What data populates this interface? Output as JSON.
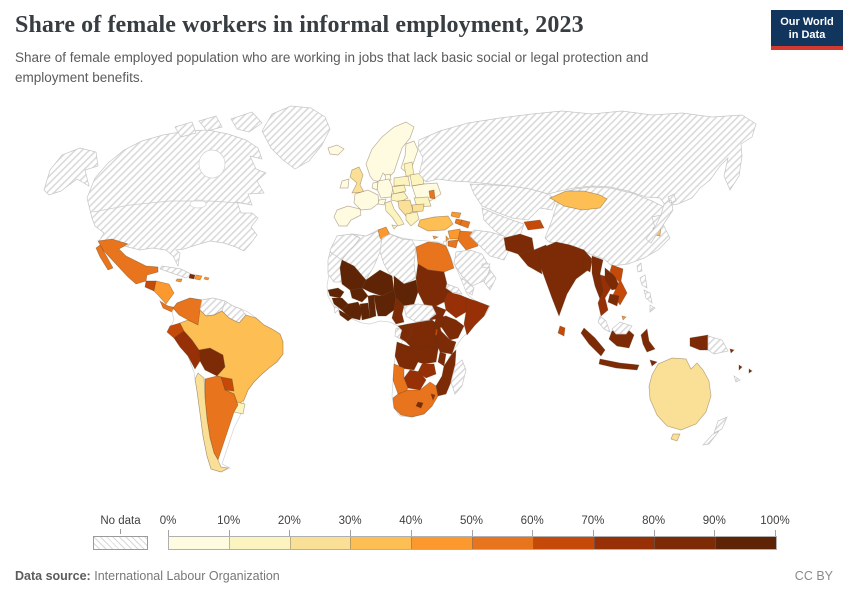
{
  "header": {
    "title": "Share of female workers in informal employment, 2023",
    "subtitle": "Share of female employed population who are working in jobs that lack basic social or legal protection and employment benefits."
  },
  "logo": {
    "line1": "Our World",
    "line2": "in Data"
  },
  "colors": {
    "logo_bg": "#12355e",
    "logo_red": "#d3392e",
    "title_color": "#383d41"
  },
  "legend": {
    "no_data_label": "No data",
    "tick_labels": [
      "0%",
      "10%",
      "20%",
      "30%",
      "40%",
      "50%",
      "60%",
      "70%",
      "80%",
      "90%",
      "100%"
    ],
    "bin_colors": [
      "#FEFBE0",
      "#FCF4BF",
      "#FAE097",
      "#FDBE54",
      "#FB992E",
      "#E8751D",
      "#C54A09",
      "#973007",
      "#7D2A06",
      "#5F2306"
    ]
  },
  "footer": {
    "source_label": "Data source:",
    "source_value": "International Labour Organization",
    "license": "CC BY"
  },
  "chart_data": {
    "type": "heatmap",
    "title": "Share of female workers in informal employment, 2023",
    "unit": "%",
    "bins": [
      "0-10",
      "10-20",
      "20-30",
      "30-40",
      "40-50",
      "50-60",
      "60-70",
      "70-80",
      "80-90",
      "90-100"
    ],
    "legend_position": "bottom",
    "values_are_bin_numbers_1_to_10": true
  },
  "map": {
    "nodata_border": "#c6c6c6",
    "country_border": "rgba(90,55,20,0.4)",
    "countries": {
      "alaska": "nd",
      "canada-us": "nd",
      "greenland": "nd",
      "baffin-1": "nd",
      "baffin-2": "nd",
      "victoria-island": "nd",
      "cuba": "nd",
      "venezuela": "nd",
      "guyanas": "nd",
      "russia": "nd",
      "kazakhstan": "nd",
      "central-asia": "nd",
      "iran": "nd",
      "saudi-arabia": "nd",
      "yemen": "nd",
      "oman": "nd",
      "uae": "nd",
      "israel": "nd",
      "china": "nd",
      "north-korea": "nd",
      "japan": "nd",
      "taiwan": "nd",
      "philippines": "nd",
      "malaysia": "nd",
      "malaysia-borneo": "nd",
      "papua-new-guinea": "nd",
      "new-zealand": "nd",
      "madagascar": "nd",
      "morocco": "nd",
      "mauritania": "nd",
      "algeria": "nd",
      "libya": "nd",
      "eritrea": "nd",
      "central-african-republic": "nd",
      "gabon": "nd",
      "sierra-leone": "nd",
      "new-caledonia": "nd",
      "iceland": 1,
      "norway-sweden": 1,
      "finland": 1,
      "denmark": 1,
      "ireland": 1,
      "france": 1,
      "iberia": 1,
      "germany": 1,
      "benelux": 1,
      "switzerland": 1,
      "ukraine": 1,
      "italy": 2,
      "austria-hungary": 2,
      "czech-slovakia": 2,
      "poland": 2,
      "baltics": 2,
      "belarus": 2,
      "romania": 2,
      "greece": 2,
      "uruguay": 2,
      "uk": 3,
      "balkans": 3,
      "bulgaria": 3,
      "chile": 3,
      "australia": 3,
      "tasmania": 3,
      "turkey": 4,
      "mongolia": 4,
      "south-korea": 4,
      "brazil": 4,
      "tunisia": 5,
      "syria": 5,
      "lebanon": 5,
      "georgia": 5,
      "cyprus": 5,
      "honduras-nicaragua": 5,
      "dominican-republic": 5,
      "jamaica": 5,
      "puerto-rico": 5,
      "brunei": 5,
      "mexico": 6,
      "panama-costa-rica": 6,
      "colombia": 6,
      "argentina": 6,
      "moldova": 6,
      "armenia": 6,
      "azerbaijan": 6,
      "jordan": 6,
      "iraq": 6,
      "egypt": 6,
      "namibia": 6,
      "south-africa": 6,
      "guatemala": 7,
      "ecuador": 7,
      "paraguay": 7,
      "kyrgyzstan-tajikistan": 7,
      "sri-lanka": 7,
      "vietnam": 7,
      "rwanda-burundi": 7,
      "peru": 8,
      "ethiopia": 8,
      "somalia": 8,
      "thailand": 8,
      "zimbabwe": 8,
      "botswana": 8,
      "eswatini": 8,
      "bolivia": 9,
      "haiti": 9,
      "afghanistan": 9,
      "pakistan": 9,
      "india": 9,
      "bangladesh": 9,
      "myanmar": 9,
      "laos": 9,
      "cambodia": 9,
      "indonesia": 9,
      "timor": 9,
      "solomon-islands": 9,
      "vanuatu": 9,
      "fiji": 9,
      "sudan": 9,
      "south-sudan": 9,
      "kenya": 9,
      "uganda": 9,
      "cameroon": 9,
      "congo": 9,
      "drc": 9,
      "angola": 9,
      "zambia": 9,
      "tanzania": 9,
      "malawi": 9,
      "mozambique": 9,
      "lesotho": 9,
      "mali": 10,
      "niger": 10,
      "chad": 10,
      "burkina-faso": 10,
      "senegal": 10,
      "guinea": 10,
      "liberia": 10,
      "ivory-coast": 10,
      "ghana": 10,
      "togo-benin": 10,
      "nigeria": 10
    }
  }
}
